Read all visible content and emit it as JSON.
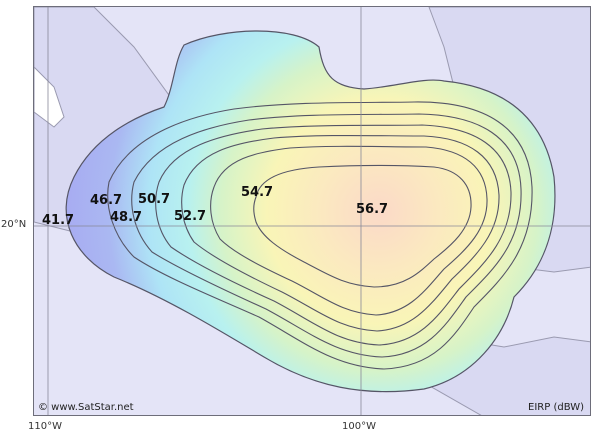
{
  "map": {
    "colors": {
      "ocean": "#e4e4f7",
      "land": "#d9d9f2",
      "coastline": "#9a9ab0",
      "contour": "#555566",
      "outer_fill": "#a7a7f2",
      "core_fill": "#fbe3cf"
    },
    "lat_labels": [
      {
        "value": "20°N"
      }
    ],
    "lon_labels": [
      {
        "value": "110°W"
      },
      {
        "value": "100°W"
      }
    ],
    "contours": [
      {
        "label": "41.7"
      },
      {
        "label": "46.7"
      },
      {
        "label": "48.7"
      },
      {
        "label": "50.7"
      },
      {
        "label": "52.7"
      },
      {
        "label": "54.7"
      },
      {
        "label": "56.7"
      }
    ],
    "copyright": "© www.SatStar.net",
    "units": "EIRP (dBW)"
  }
}
